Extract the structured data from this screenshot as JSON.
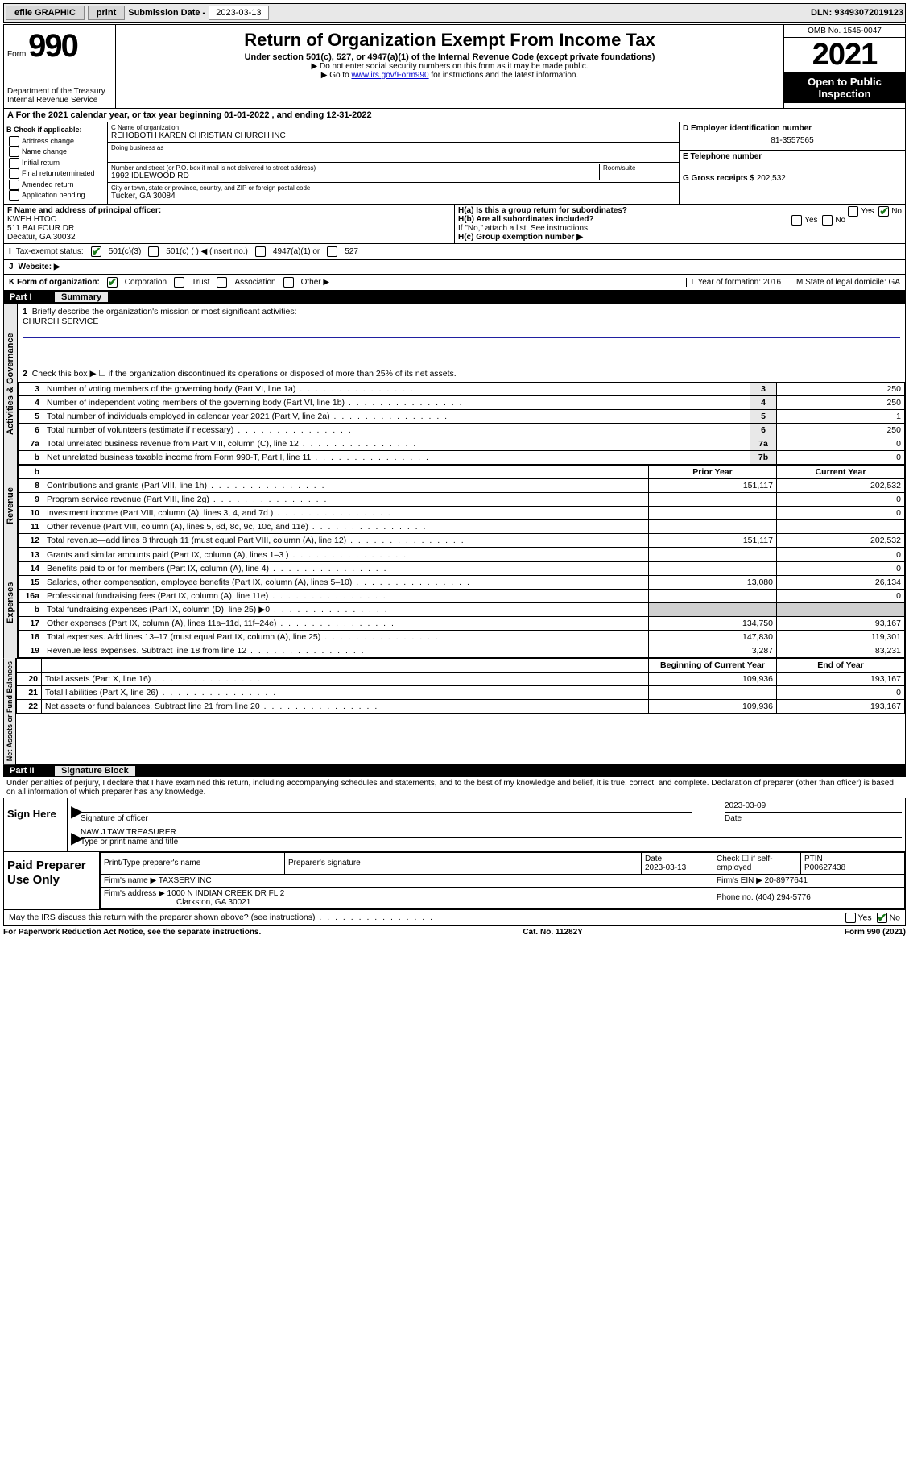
{
  "topbar": {
    "efile": "efile GRAPHIC",
    "print": "print",
    "sub_label": "Submission Date -",
    "sub_date": "2023-03-13",
    "dln": "DLN: 93493072019123"
  },
  "header": {
    "form": "Form",
    "num": "990",
    "dept": "Department of the Treasury",
    "irs": "Internal Revenue Service",
    "title": "Return of Organization Exempt From Income Tax",
    "sub": "Under section 501(c), 527, or 4947(a)(1) of the Internal Revenue Code (except private foundations)",
    "instr1": "▶ Do not enter social security numbers on this form as it may be made public.",
    "instr2_pre": "▶ Go to ",
    "instr2_link": "www.irs.gov/Form990",
    "instr2_post": " for instructions and the latest information.",
    "omb": "OMB No. 1545-0047",
    "year": "2021",
    "open": "Open to Public Inspection"
  },
  "a": {
    "text": "For the 2021 calendar year, or tax year beginning 01-01-2022   , and ending 12-31-2022"
  },
  "b": {
    "hdr": "B Check if applicable:",
    "opts": [
      "Address change",
      "Name change",
      "Initial return",
      "Final return/terminated",
      "Amended return",
      "Application pending"
    ]
  },
  "c": {
    "name_lbl": "C Name of organization",
    "name": "REHOBOTH KAREN CHRISTIAN CHURCH INC",
    "dba_lbl": "Doing business as",
    "dba": "",
    "addr_lbl": "Number and street (or P.O. box if mail is not delivered to street address)",
    "room_lbl": "Room/suite",
    "addr": "1992 IDLEWOOD RD",
    "city_lbl": "City or town, state or province, country, and ZIP or foreign postal code",
    "city": "Tucker, GA  30084"
  },
  "d": {
    "lbl": "D Employer identification number",
    "val": "81-3557565"
  },
  "e": {
    "lbl": "E Telephone number",
    "val": ""
  },
  "g": {
    "lbl": "G Gross receipts $",
    "val": "202,532"
  },
  "f": {
    "lbl": "F Name and address of principal officer:",
    "name": "KWEH HTOO",
    "addr1": "511 BALFOUR DR",
    "addr2": "Decatur, GA  30032"
  },
  "h": {
    "a": "H(a)  Is this a group return for subordinates?",
    "b": "H(b)  Are all subordinates included?",
    "bnote": "If \"No,\" attach a list. See instructions.",
    "c": "H(c)  Group exemption number ▶"
  },
  "i": {
    "lbl": "Tax-exempt status:",
    "o1": "501(c)(3)",
    "o2": "501(c) (  ) ◀ (insert no.)",
    "o3": "4947(a)(1) or",
    "o4": "527"
  },
  "j": {
    "lbl": "Website: ▶"
  },
  "k": {
    "lbl": "K Form of organization:",
    "opts": [
      "Corporation",
      "Trust",
      "Association",
      "Other ▶"
    ],
    "l": "L Year of formation: 2016",
    "m": "M State of legal domicile: GA"
  },
  "part1": {
    "hdr_pt": "Part I",
    "hdr_nm": "Summary",
    "tab1": "Activities & Governance",
    "tab2": "Revenue",
    "tab3": "Expenses",
    "tab4": "Net Assets or Fund Balances",
    "q1": "Briefly describe the organization's mission or most significant activities:",
    "q1v": "CHURCH SERVICE",
    "q2": "Check this box ▶ ☐  if the organization discontinued its operations or disposed of more than 25% of its net assets.",
    "rows_gov": [
      {
        "n": "3",
        "t": "Number of voting members of the governing body (Part VI, line 1a)",
        "ln": "3",
        "v": "250"
      },
      {
        "n": "4",
        "t": "Number of independent voting members of the governing body (Part VI, line 1b)",
        "ln": "4",
        "v": "250"
      },
      {
        "n": "5",
        "t": "Total number of individuals employed in calendar year 2021 (Part V, line 2a)",
        "ln": "5",
        "v": "1"
      },
      {
        "n": "6",
        "t": "Total number of volunteers (estimate if necessary)",
        "ln": "6",
        "v": "250"
      },
      {
        "n": "7a",
        "t": "Total unrelated business revenue from Part VIII, column (C), line 12",
        "ln": "7a",
        "v": "0"
      },
      {
        "n": "b",
        "t": "Net unrelated business taxable income from Form 990-T, Part I, line 11",
        "ln": "7b",
        "v": "0"
      }
    ],
    "col_prior": "Prior Year",
    "col_curr": "Current Year",
    "col_beg": "Beginning of Current Year",
    "col_end": "End of Year",
    "rows_rev": [
      {
        "n": "8",
        "t": "Contributions and grants (Part VIII, line 1h)",
        "p": "151,117",
        "c": "202,532"
      },
      {
        "n": "9",
        "t": "Program service revenue (Part VIII, line 2g)",
        "p": "",
        "c": "0"
      },
      {
        "n": "10",
        "t": "Investment income (Part VIII, column (A), lines 3, 4, and 7d )",
        "p": "",
        "c": "0"
      },
      {
        "n": "11",
        "t": "Other revenue (Part VIII, column (A), lines 5, 6d, 8c, 9c, 10c, and 11e)",
        "p": "",
        "c": ""
      },
      {
        "n": "12",
        "t": "Total revenue—add lines 8 through 11 (must equal Part VIII, column (A), line 12)",
        "p": "151,117",
        "c": "202,532"
      }
    ],
    "rows_exp": [
      {
        "n": "13",
        "t": "Grants and similar amounts paid (Part IX, column (A), lines 1–3 )",
        "p": "",
        "c": "0"
      },
      {
        "n": "14",
        "t": "Benefits paid to or for members (Part IX, column (A), line 4)",
        "p": "",
        "c": "0"
      },
      {
        "n": "15",
        "t": "Salaries, other compensation, employee benefits (Part IX, column (A), lines 5–10)",
        "p": "13,080",
        "c": "26,134"
      },
      {
        "n": "16a",
        "t": "Professional fundraising fees (Part IX, column (A), line 11e)",
        "p": "",
        "c": "0"
      },
      {
        "n": "b",
        "t": "Total fundraising expenses (Part IX, column (D), line 25) ▶0",
        "p": "SHADE",
        "c": "SHADE"
      },
      {
        "n": "17",
        "t": "Other expenses (Part IX, column (A), lines 11a–11d, 11f–24e)",
        "p": "134,750",
        "c": "93,167"
      },
      {
        "n": "18",
        "t": "Total expenses. Add lines 13–17 (must equal Part IX, column (A), line 25)",
        "p": "147,830",
        "c": "119,301"
      },
      {
        "n": "19",
        "t": "Revenue less expenses. Subtract line 18 from line 12",
        "p": "3,287",
        "c": "83,231"
      }
    ],
    "rows_net": [
      {
        "n": "20",
        "t": "Total assets (Part X, line 16)",
        "p": "109,936",
        "c": "193,167"
      },
      {
        "n": "21",
        "t": "Total liabilities (Part X, line 26)",
        "p": "",
        "c": "0"
      },
      {
        "n": "22",
        "t": "Net assets or fund balances. Subtract line 21 from line 20",
        "p": "109,936",
        "c": "193,167"
      }
    ]
  },
  "part2": {
    "hdr_pt": "Part II",
    "hdr_nm": "Signature Block",
    "decl": "Under penalties of perjury, I declare that I have examined this return, including accompanying schedules and statements, and to the best of my knowledge and belief, it is true, correct, and complete. Declaration of preparer (other than officer) is based on all information of which preparer has any knowledge."
  },
  "sign": {
    "lbl": "Sign Here",
    "sig_lbl": "Signature of officer",
    "date_lbl": "Date",
    "date": "2023-03-09",
    "name": "NAW J TAW TREASURER",
    "name_lbl": "Type or print name and title"
  },
  "prep": {
    "lbl": "Paid Preparer Use Only",
    "r1": {
      "c1": "Print/Type preparer's name",
      "c2": "Preparer's signature",
      "c3": "Date",
      "c3v": "2023-03-13",
      "c4": "Check ☐ if self-employed",
      "c5": "PTIN",
      "c5v": "P00627438"
    },
    "r2": {
      "c1": "Firm's name   ▶",
      "c1v": "TAXSERV INC",
      "c2": "Firm's EIN ▶",
      "c2v": "20-8977641"
    },
    "r3": {
      "c1": "Firm's address ▶",
      "c1v": "1000 N INDIAN CREEK DR FL 2",
      "c1v2": "Clarkston, GA  30021",
      "c2": "Phone no.",
      "c2v": "(404) 294-5776"
    }
  },
  "may": "May the IRS discuss this return with the preparer shown above? (see instructions)",
  "footer": {
    "l": "For Paperwork Reduction Act Notice, see the separate instructions.",
    "m": "Cat. No. 11282Y",
    "r": "Form 990 (2021)"
  }
}
